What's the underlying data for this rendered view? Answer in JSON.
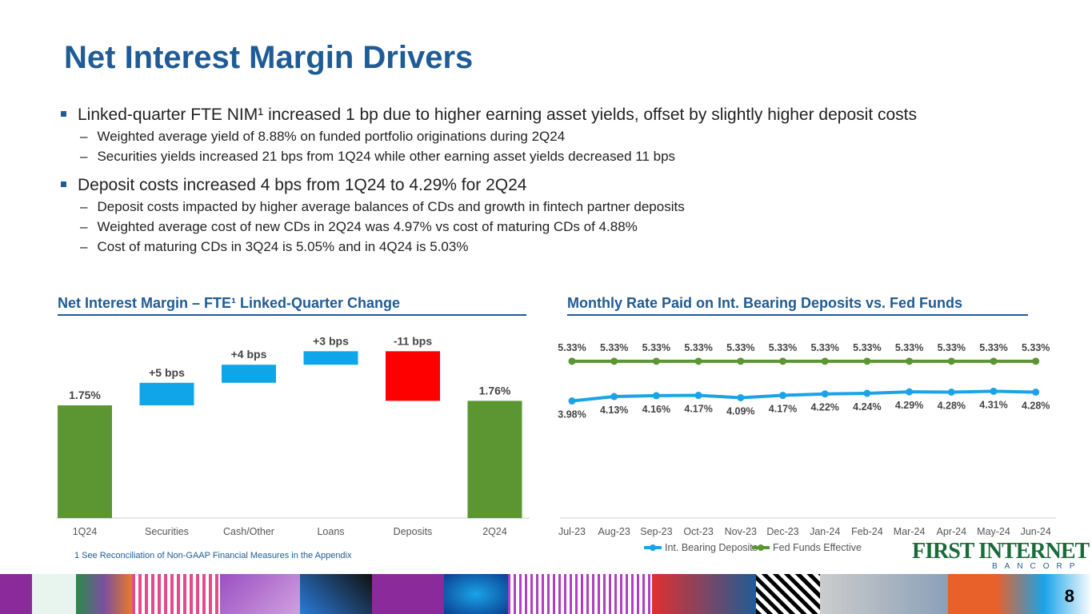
{
  "title": "Net Interest Margin Drivers",
  "bullets": [
    {
      "text": "Linked-quarter FTE NIM¹ increased 1 bp due to higher earning asset yields, offset by slightly higher deposit costs",
      "subs": [
        "Weighted average yield of 8.88% on funded portfolio originations during 2Q24",
        "Securities yields increased 21 bps from 1Q24 while other earning asset yields decreased 11 bps"
      ]
    },
    {
      "text": "Deposit costs increased 4 bps from 1Q24 to 4.29% for 2Q24",
      "subs": [
        "Deposit costs impacted by higher average balances of CDs and growth in fintech partner deposits",
        "Weighted average cost of new CDs in 2Q24 was 4.97% vs cost of maturing CDs of 4.88%",
        "Cost of maturing CDs in 3Q24 is 5.05% and in 4Q24 is 5.03%"
      ]
    }
  ],
  "footnote": "1    See Reconciliation of Non-GAAP Financial Measures in the Appendix",
  "logo": {
    "name": "FIRST INTERNET",
    "sub": "BANCORP"
  },
  "page_number": "8",
  "chart_data": [
    {
      "type": "bar",
      "subtype": "waterfall",
      "title": "Net Interest Margin – FTE¹ Linked-Quarter Change",
      "categories": [
        "1Q24",
        "Securities",
        "Cash/Other",
        "Loans",
        "Deposits",
        "2Q24"
      ],
      "values_bps": [
        175,
        5,
        4,
        3,
        -11,
        176
      ],
      "labels": [
        "1.75%",
        "+5 bps",
        "+4 bps",
        "+3 bps",
        "-11 bps",
        "1.76%"
      ],
      "ylim_pct": [
        1.5,
        1.82
      ],
      "colors": {
        "total": "#5b9632",
        "increase": "#0ea5e9",
        "decrease": "#ff0000"
      }
    },
    {
      "type": "line",
      "title": "Monthly Rate Paid on Int. Bearing Deposits vs. Fed Funds",
      "categories": [
        "Jul-23",
        "Aug-23",
        "Sep-23",
        "Oct-23",
        "Nov-23",
        "Dec-23",
        "Jan-24",
        "Feb-24",
        "Mar-24",
        "Apr-24",
        "May-24",
        "Jun-24"
      ],
      "series": [
        {
          "name": "Int. Bearing Deposits",
          "color": "#1aa3e8",
          "values": [
            3.98,
            4.13,
            4.16,
            4.17,
            4.09,
            4.17,
            4.22,
            4.24,
            4.29,
            4.28,
            4.31,
            4.28
          ]
        },
        {
          "name": "Fed Funds Effective",
          "color": "#5b9632",
          "values": [
            5.33,
            5.33,
            5.33,
            5.33,
            5.33,
            5.33,
            5.33,
            5.33,
            5.33,
            5.33,
            5.33,
            5.33
          ]
        }
      ],
      "ylim": [
        0,
        5.9
      ],
      "legend": "bottom"
    }
  ]
}
